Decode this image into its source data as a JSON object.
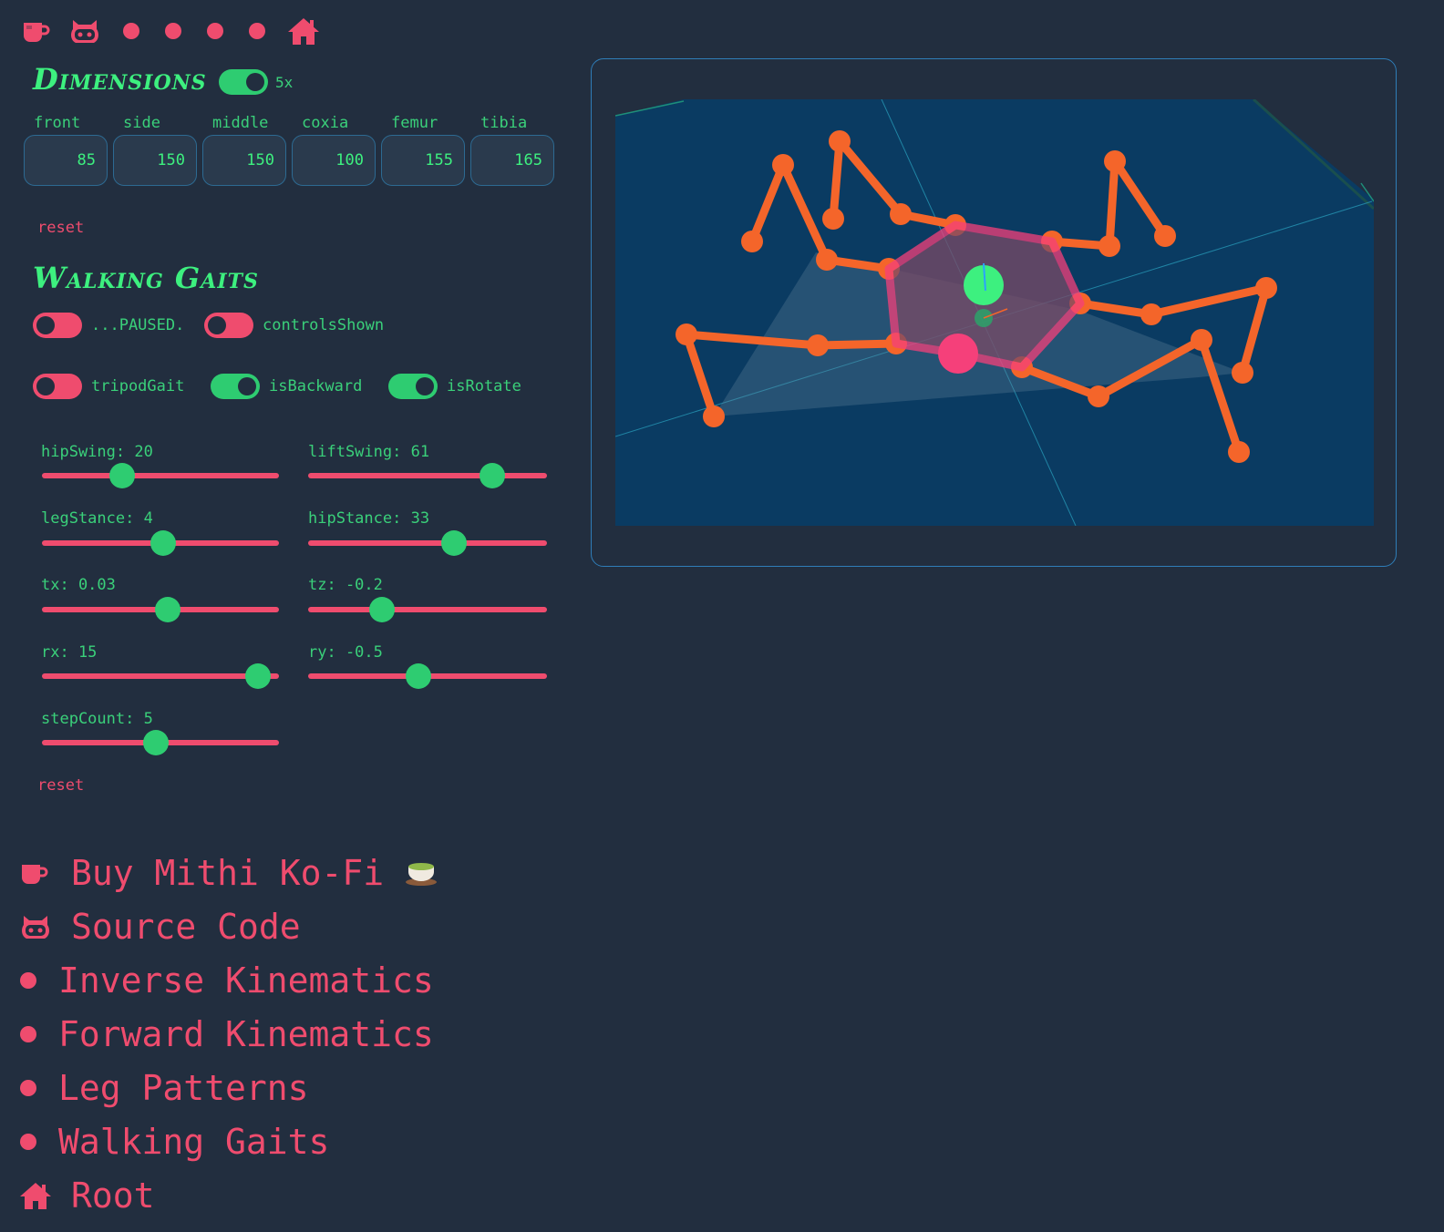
{
  "colors": {
    "background": "#222e3f",
    "accent_green": "#3df07f",
    "accent_pink": "#ef4c6e",
    "scene_bg": "#0a3b62",
    "leg_orange": "#f4652a",
    "body_pink": "#f5407a"
  },
  "topnav": {
    "icons": [
      "coffee-icon",
      "github-icon",
      "dot-icon",
      "dot-icon",
      "dot-icon",
      "dot-icon",
      "home-icon"
    ]
  },
  "dimensions": {
    "title": "Dimensions",
    "scale_label": "5x",
    "scale_on": true,
    "fields": [
      {
        "label": "front",
        "value": "85"
      },
      {
        "label": "side",
        "value": "150"
      },
      {
        "label": "middle",
        "value": "150"
      },
      {
        "label": "coxia",
        "value": "100"
      },
      {
        "label": "femur",
        "value": "155"
      },
      {
        "label": "tibia",
        "value": "165"
      }
    ],
    "reset_label": "reset"
  },
  "gaits": {
    "title": "Walking Gaits",
    "toggles": [
      {
        "label": "...PAUSED.",
        "on": false
      },
      {
        "label": "controlsShown",
        "on": false
      },
      {
        "label": "tripodGait",
        "on": false
      },
      {
        "label": "isBackward",
        "on": true
      },
      {
        "label": "isRotate",
        "on": true
      }
    ],
    "sliders": [
      {
        "label": "hipSwing: 20",
        "fraction": 0.34
      },
      {
        "label": "liftSwing: 61",
        "fraction": 0.77
      },
      {
        "label": "legStance: 4",
        "fraction": 0.51
      },
      {
        "label": "hipStance: 33",
        "fraction": 0.61
      },
      {
        "label": "tx: 0.03",
        "fraction": 0.53
      },
      {
        "label": "tz: -0.2",
        "fraction": 0.31
      },
      {
        "label": "rx: 15",
        "fraction": 0.91
      },
      {
        "label": "ry: -0.5",
        "fraction": 0.46
      },
      {
        "label": "stepCount: 5",
        "fraction": 0.48
      }
    ],
    "reset_label": "reset"
  },
  "links": [
    {
      "icon": "coffee-icon",
      "label": "Buy Mithi Ko-Fi",
      "suffix_icon": "tea-icon"
    },
    {
      "icon": "github-icon",
      "label": "Source Code"
    },
    {
      "icon": "dot-icon",
      "label": "Inverse Kinematics"
    },
    {
      "icon": "dot-icon",
      "label": "Forward Kinematics"
    },
    {
      "icon": "dot-icon",
      "label": "Leg Patterns"
    },
    {
      "icon": "dot-icon",
      "label": "Walking Gaits"
    },
    {
      "icon": "home-icon",
      "label": "Root"
    }
  ]
}
